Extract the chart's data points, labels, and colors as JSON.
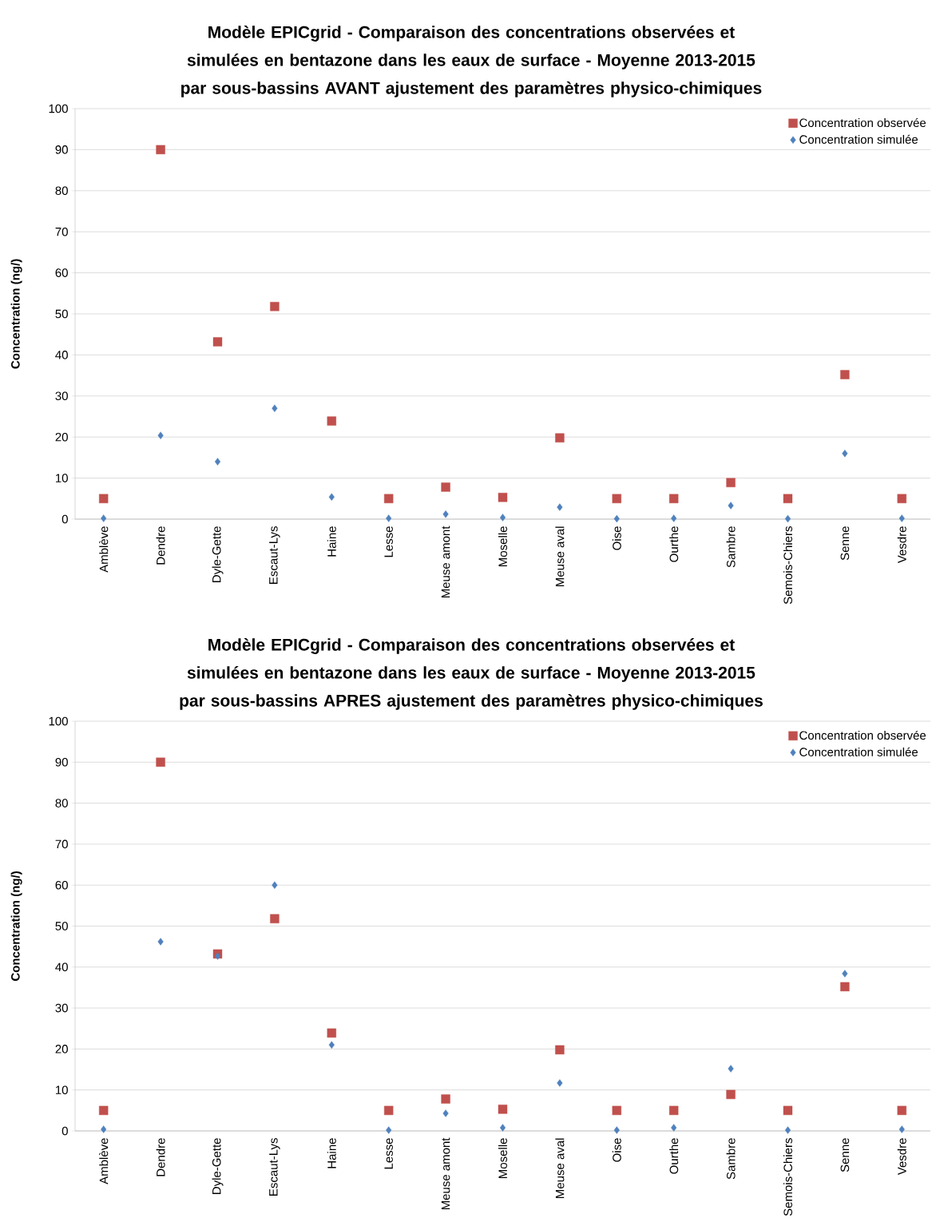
{
  "chart_data": [
    {
      "type": "scatter",
      "title": "Modèle EPICgrid - Comparaison des concentrations observées et simulées en bentazone dans les eaux de surface - Moyenne 2013-2015 par sous-bassins AVANT ajustement des paramètres physico-chimiques",
      "ylabel": "Concentration (ng/)",
      "categories": [
        "Amblève",
        "Dendre",
        "Dyle-Gette",
        "Escaut-Lys",
        "Haine",
        "Lesse",
        "Meuse amont",
        "Moselle",
        "Meuse aval",
        "Oise",
        "Ourthe",
        "Sambre",
        "Semois-Chiers",
        "Senne",
        "Vesdre"
      ],
      "series": [
        {
          "name": "Concentration observée",
          "color": "#c0504d",
          "marker": "square",
          "values": [
            5,
            90,
            43.2,
            51.8,
            23.9,
            5,
            7.8,
            5.3,
            19.8,
            5,
            5,
            8.9,
            5,
            35.2,
            5
          ]
        },
        {
          "name": "Concentration simulée",
          "color": "#4f81bd",
          "marker": "diamond",
          "values": [
            0.2,
            20.4,
            14,
            27,
            5.4,
            0.2,
            1.2,
            0.4,
            2.9,
            0.1,
            0.2,
            3.3,
            0.1,
            16,
            0.2
          ]
        }
      ],
      "ylim": [
        0,
        100
      ],
      "yticks": [
        0,
        10,
        20,
        30,
        40,
        50,
        60,
        70,
        80,
        90,
        100
      ],
      "grid": "y",
      "legend": "top right"
    },
    {
      "type": "scatter",
      "title": "Modèle EPICgrid - Comparaison des concentrations observées et simulées en bentazone dans les eaux de surface - Moyenne 2013-2015 par sous-bassins APRES ajustement des paramètres physico-chimiques",
      "ylabel": "Concentration (ng/)",
      "categories": [
        "Amblève",
        "Dendre",
        "Dyle-Gette",
        "Escaut-Lys",
        "Haine",
        "Lesse",
        "Meuse amont",
        "Moselle",
        "Meuse aval",
        "Oise",
        "Ourthe",
        "Sambre",
        "Semois-Chiers",
        "Senne",
        "Vesdre"
      ],
      "series": [
        {
          "name": "Concentration observée",
          "color": "#c0504d",
          "marker": "square",
          "values": [
            5,
            90,
            43.2,
            51.8,
            23.9,
            5,
            7.8,
            5.3,
            19.8,
            5,
            5,
            8.9,
            5,
            35.2,
            5
          ]
        },
        {
          "name": "Concentration simulée",
          "color": "#4f81bd",
          "marker": "diamond",
          "values": [
            0.4,
            46.2,
            42.7,
            60,
            21,
            0.2,
            4.3,
            0.8,
            11.7,
            0.2,
            0.8,
            15.2,
            0.2,
            38.4,
            0.4
          ]
        }
      ],
      "ylim": [
        0,
        100
      ],
      "yticks": [
        0,
        10,
        20,
        30,
        40,
        50,
        60,
        70,
        80,
        90,
        100
      ],
      "grid": "y",
      "legend": "top right"
    }
  ]
}
